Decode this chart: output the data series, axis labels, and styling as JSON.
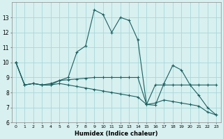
{
  "xlabel": "Humidex (Indice chaleur)",
  "bg_color": "#d8f0f0",
  "grid_color": "#a8d8d8",
  "line_color": "#1a6060",
  "xlim": [
    -0.5,
    23.5
  ],
  "ylim": [
    6,
    14
  ],
  "yticks": [
    6,
    7,
    8,
    9,
    10,
    11,
    12,
    13
  ],
  "xticks": [
    0,
    1,
    2,
    3,
    4,
    5,
    6,
    7,
    8,
    9,
    10,
    11,
    12,
    13,
    14,
    15,
    16,
    17,
    18,
    19,
    20,
    21,
    22,
    23
  ],
  "series": [
    {
      "x": [
        0,
        1,
        2,
        3,
        4,
        5,
        6,
        7,
        8,
        9,
        10,
        11,
        12,
        13,
        14,
        15,
        16,
        17,
        18,
        19,
        20,
        21,
        22,
        23
      ],
      "y": [
        10.0,
        8.5,
        8.6,
        8.5,
        8.5,
        8.8,
        9.0,
        10.7,
        11.1,
        13.5,
        13.2,
        12.0,
        13.0,
        12.8,
        11.5,
        7.2,
        7.15,
        8.6,
        9.8,
        9.5,
        8.5,
        7.8,
        7.0,
        6.5
      ]
    },
    {
      "x": [
        0,
        1,
        2,
        3,
        4,
        5,
        6,
        7,
        8,
        9,
        10,
        11,
        12,
        13,
        14,
        15,
        16,
        17,
        18,
        19,
        20,
        21,
        22,
        23
      ],
      "y": [
        10.0,
        8.5,
        8.6,
        8.5,
        8.6,
        8.8,
        8.85,
        8.9,
        8.95,
        9.0,
        9.0,
        9.0,
        9.0,
        9.0,
        9.0,
        7.2,
        8.5,
        8.5,
        8.5,
        8.5,
        8.5,
        8.5,
        8.5,
        8.5
      ]
    },
    {
      "x": [
        0,
        1,
        2,
        3,
        4,
        5,
        6,
        7,
        8,
        9,
        10,
        11,
        12,
        13,
        14,
        15,
        16,
        17,
        18,
        19,
        20,
        21,
        22,
        23
      ],
      "y": [
        10.0,
        8.5,
        8.6,
        8.5,
        8.5,
        8.6,
        8.5,
        8.4,
        8.3,
        8.2,
        8.1,
        8.0,
        7.9,
        7.8,
        7.7,
        7.2,
        7.3,
        7.5,
        7.4,
        7.3,
        7.2,
        7.1,
        6.7,
        6.5
      ]
    }
  ]
}
